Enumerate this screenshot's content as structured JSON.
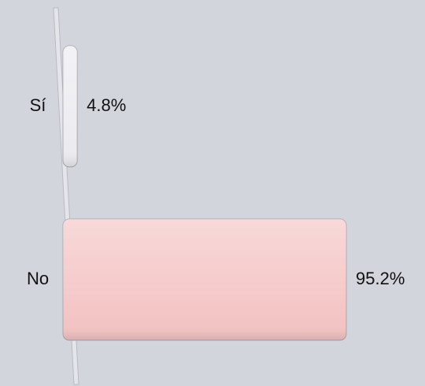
{
  "chart_data": {
    "type": "bar",
    "orientation": "horizontal",
    "categories": [
      "Sí",
      "No"
    ],
    "values": [
      4.8,
      95.2
    ],
    "value_labels": [
      "4.8%",
      "95.2%"
    ],
    "colors": [
      "#ececf0",
      "#f4c4c4"
    ]
  }
}
